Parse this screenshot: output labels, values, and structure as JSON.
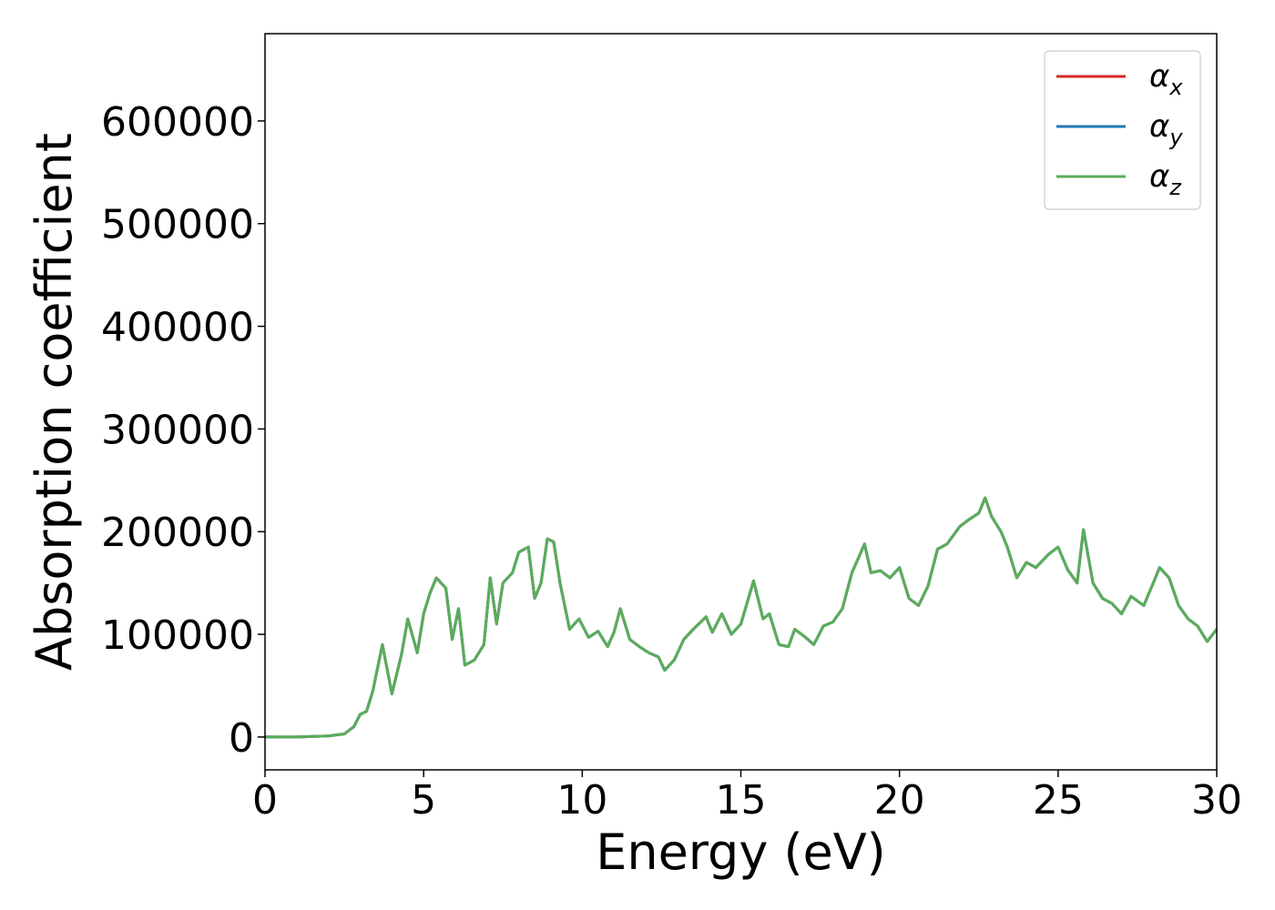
{
  "chart_data": {
    "type": "line",
    "title": "",
    "xlabel": "Energy (eV)",
    "ylabel": "Absorption coefficient",
    "xlim": [
      0,
      30
    ],
    "ylim": [
      -32000,
      685000
    ],
    "xticks": [
      0,
      5,
      10,
      15,
      20,
      25,
      30
    ],
    "xtick_labels": [
      "0",
      "5",
      "10",
      "15",
      "20",
      "25",
      "30"
    ],
    "yticks": [
      0,
      100000,
      200000,
      300000,
      400000,
      500000,
      600000
    ],
    "ytick_labels": [
      "0",
      "100000",
      "200000",
      "300000",
      "400000",
      "500000",
      "600000"
    ],
    "grid": false,
    "legend_position": "top-right",
    "x": [
      0,
      1.0,
      2.0,
      2.5,
      2.8,
      3.0,
      3.2,
      3.4,
      3.7,
      4.0,
      4.3,
      4.5,
      4.8,
      5.0,
      5.2,
      5.4,
      5.7,
      5.9,
      6.1,
      6.3,
      6.6,
      6.9,
      7.1,
      7.3,
      7.5,
      7.8,
      8.0,
      8.3,
      8.5,
      8.7,
      8.9,
      9.1,
      9.3,
      9.6,
      9.9,
      10.2,
      10.5,
      10.8,
      11.0,
      11.2,
      11.5,
      11.8,
      12.1,
      12.4,
      12.6,
      12.9,
      13.2,
      13.5,
      13.9,
      14.1,
      14.4,
      14.7,
      15.0,
      15.4,
      15.7,
      15.9,
      16.2,
      16.5,
      16.7,
      17.0,
      17.3,
      17.6,
      17.9,
      18.2,
      18.5,
      18.9,
      19.1,
      19.4,
      19.7,
      20.0,
      20.3,
      20.6,
      20.9,
      21.2,
      21.5,
      21.9,
      22.2,
      22.5,
      22.7,
      22.9,
      23.2,
      23.4,
      23.7,
      24.0,
      24.3,
      24.7,
      25.0,
      25.3,
      25.6,
      25.8,
      26.1,
      26.4,
      26.7,
      27.0,
      27.3,
      27.7,
      28.0,
      28.2,
      28.5,
      28.8,
      29.1,
      29.4,
      29.7,
      30.0
    ],
    "series": [
      {
        "name": "α",
        "name_sub": "x",
        "color": "#d62728",
        "values": [
          0,
          0,
          1000,
          3000,
          10000,
          22000,
          25000,
          45000,
          90000,
          42000,
          80000,
          115000,
          82000,
          120000,
          140000,
          155000,
          145000,
          95000,
          125000,
          70000,
          75000,
          90000,
          155000,
          110000,
          150000,
          160000,
          180000,
          185000,
          135000,
          150000,
          193000,
          190000,
          150000,
          105000,
          115000,
          97000,
          103000,
          88000,
          102000,
          125000,
          95000,
          88000,
          82000,
          78000,
          65000,
          75000,
          95000,
          105000,
          117000,
          102000,
          120000,
          100000,
          110000,
          152000,
          115000,
          120000,
          90000,
          88000,
          105000,
          98000,
          90000,
          108000,
          112000,
          125000,
          160000,
          188000,
          160000,
          162000,
          155000,
          165000,
          135000,
          128000,
          147000,
          183000,
          188000,
          205000,
          212000,
          218000,
          233000,
          215000,
          200000,
          185000,
          155000,
          170000,
          165000,
          178000,
          185000,
          163000,
          150000,
          202000,
          150000,
          135000,
          130000,
          120000,
          137000,
          128000,
          150000,
          165000,
          155000,
          128000,
          115000,
          108000,
          93000,
          105000
        ]
      },
      {
        "name": "α",
        "name_sub": "y",
        "color": "#1f77b4",
        "values": [
          0,
          0,
          1000,
          3000,
          10000,
          22000,
          25000,
          45000,
          90000,
          42000,
          80000,
          115000,
          82000,
          120000,
          140000,
          155000,
          145000,
          95000,
          125000,
          70000,
          75000,
          90000,
          155000,
          110000,
          150000,
          160000,
          180000,
          185000,
          135000,
          150000,
          193000,
          190000,
          150000,
          105000,
          115000,
          97000,
          103000,
          88000,
          102000,
          125000,
          95000,
          88000,
          82000,
          78000,
          65000,
          75000,
          95000,
          105000,
          117000,
          102000,
          120000,
          100000,
          110000,
          152000,
          115000,
          120000,
          90000,
          88000,
          105000,
          98000,
          90000,
          108000,
          112000,
          125000,
          160000,
          188000,
          160000,
          162000,
          155000,
          165000,
          135000,
          128000,
          147000,
          183000,
          188000,
          205000,
          212000,
          218000,
          233000,
          215000,
          200000,
          185000,
          155000,
          170000,
          165000,
          178000,
          185000,
          163000,
          150000,
          202000,
          150000,
          135000,
          130000,
          120000,
          137000,
          128000,
          150000,
          165000,
          155000,
          128000,
          115000,
          108000,
          93000,
          105000
        ]
      },
      {
        "name": "α",
        "name_sub": "z",
        "color": "#5aad5a",
        "values": [
          0,
          0,
          1000,
          3000,
          10000,
          22000,
          25000,
          45000,
          90000,
          42000,
          80000,
          115000,
          82000,
          120000,
          140000,
          155000,
          145000,
          95000,
          125000,
          70000,
          75000,
          90000,
          155000,
          110000,
          150000,
          160000,
          180000,
          185000,
          135000,
          150000,
          193000,
          190000,
          150000,
          105000,
          115000,
          97000,
          103000,
          88000,
          102000,
          125000,
          95000,
          88000,
          82000,
          78000,
          65000,
          75000,
          95000,
          105000,
          117000,
          102000,
          120000,
          100000,
          110000,
          152000,
          115000,
          120000,
          90000,
          88000,
          105000,
          98000,
          90000,
          108000,
          112000,
          125000,
          160000,
          188000,
          160000,
          162000,
          155000,
          165000,
          135000,
          128000,
          147000,
          183000,
          188000,
          205000,
          212000,
          218000,
          233000,
          215000,
          200000,
          185000,
          155000,
          170000,
          165000,
          178000,
          185000,
          163000,
          150000,
          202000,
          150000,
          135000,
          130000,
          120000,
          137000,
          128000,
          150000,
          165000,
          155000,
          128000,
          115000,
          108000,
          93000,
          105000
        ]
      }
    ]
  }
}
